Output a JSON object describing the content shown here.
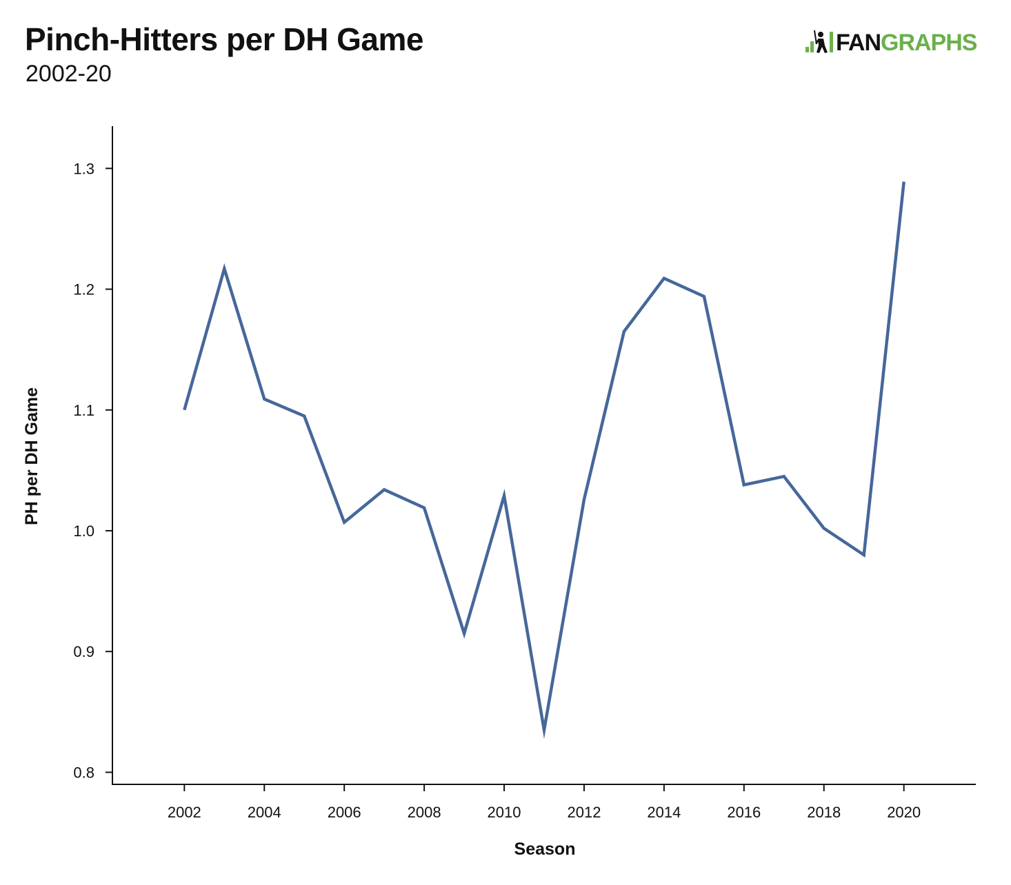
{
  "header": {
    "title": "Pinch-Hitters per DH Game",
    "subtitle": "2002-20"
  },
  "brand": {
    "name_part1": "FAN",
    "name_part2": "GRAPHS",
    "accent_color": "#6ab04c",
    "icon": "batter-icon"
  },
  "chart_data": {
    "type": "line",
    "title": "Pinch-Hitters per DH Game",
    "subtitle": "2002-20",
    "xlabel": "Season",
    "ylabel": "PH per DH Game",
    "xlim": [
      2000.2,
      2021.8
    ],
    "ylim": [
      0.79,
      1.335
    ],
    "x_ticks": [
      "2002",
      "2004",
      "2006",
      "2008",
      "2010",
      "2012",
      "2014",
      "2016",
      "2018",
      "2020"
    ],
    "y_ticks": [
      "0.8",
      "0.9",
      "1.0",
      "1.1",
      "1.2",
      "1.3"
    ],
    "grid": false,
    "line_color": "#46679a",
    "series": [
      {
        "x": [
          2002,
          2003,
          2004,
          2005,
          2006,
          2007,
          2008,
          2009,
          2010,
          2011,
          2012,
          2013,
          2014,
          2015,
          2016,
          2017,
          2018,
          2019,
          2020
        ],
        "values": [
          1.1,
          1.217,
          1.109,
          1.095,
          1.007,
          1.034,
          1.019,
          0.915,
          1.029,
          0.835,
          1.026,
          1.165,
          1.209,
          1.194,
          1.038,
          1.045,
          1.002,
          0.98,
          1.289
        ]
      }
    ]
  }
}
